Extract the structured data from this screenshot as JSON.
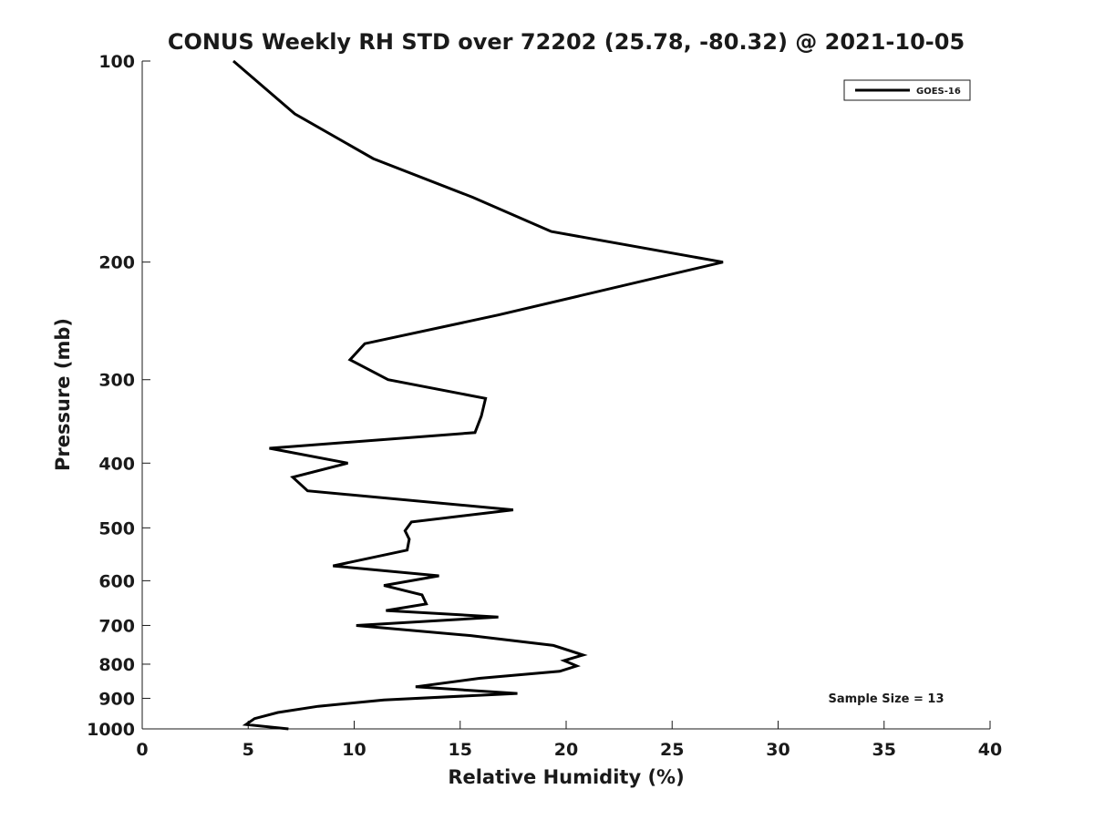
{
  "chart_data": {
    "type": "line",
    "title": "CONUS Weekly RH STD over 72202 (25.78, -80.32) @ 2021-10-05",
    "xlabel": "Relative Humidity (%)",
    "ylabel": "Pressure (mb)",
    "xlim": [
      0,
      40
    ],
    "ylim": [
      100,
      1000
    ],
    "yscale": "log",
    "yreverse": true,
    "grid": false,
    "xticks": [
      "0",
      "5",
      "10",
      "15",
      "20",
      "25",
      "30",
      "35",
      "40"
    ],
    "yticks": [
      "100",
      "200",
      "300",
      "400",
      "500",
      "600",
      "700",
      "800",
      "900",
      "1000"
    ],
    "legend": {
      "position": "top-right",
      "entries": [
        "GOES-16"
      ]
    },
    "annotation": "Sample Size = 13",
    "series": [
      {
        "name": "GOES-16",
        "color": "#000000",
        "points": [
          [
            4.3,
            100
          ],
          [
            7.2,
            120
          ],
          [
            10.9,
            140
          ],
          [
            15.6,
            160
          ],
          [
            19.3,
            180
          ],
          [
            27.4,
            200
          ],
          [
            16.8,
            240
          ],
          [
            10.5,
            265
          ],
          [
            9.8,
            280
          ],
          [
            11.6,
            300
          ],
          [
            16.2,
            320
          ],
          [
            16.0,
            340
          ],
          [
            15.7,
            360
          ],
          [
            6.0,
            380
          ],
          [
            9.7,
            400
          ],
          [
            7.1,
            420
          ],
          [
            7.8,
            440
          ],
          [
            17.5,
            470
          ],
          [
            12.7,
            490
          ],
          [
            12.4,
            505
          ],
          [
            12.6,
            520
          ],
          [
            12.5,
            540
          ],
          [
            9.0,
            570
          ],
          [
            14.0,
            590
          ],
          [
            11.4,
            610
          ],
          [
            13.2,
            630
          ],
          [
            13.4,
            650
          ],
          [
            11.5,
            665
          ],
          [
            16.8,
            680
          ],
          [
            10.1,
            700
          ],
          [
            15.5,
            725
          ],
          [
            19.4,
            750
          ],
          [
            20.8,
            775
          ],
          [
            19.9,
            790
          ],
          [
            20.5,
            805
          ],
          [
            19.7,
            820
          ],
          [
            15.9,
            840
          ],
          [
            12.9,
            865
          ],
          [
            17.7,
            885
          ],
          [
            11.4,
            905
          ],
          [
            8.3,
            925
          ],
          [
            6.4,
            945
          ],
          [
            5.3,
            965
          ],
          [
            4.9,
            985
          ],
          [
            6.9,
            1000
          ]
        ]
      }
    ]
  }
}
